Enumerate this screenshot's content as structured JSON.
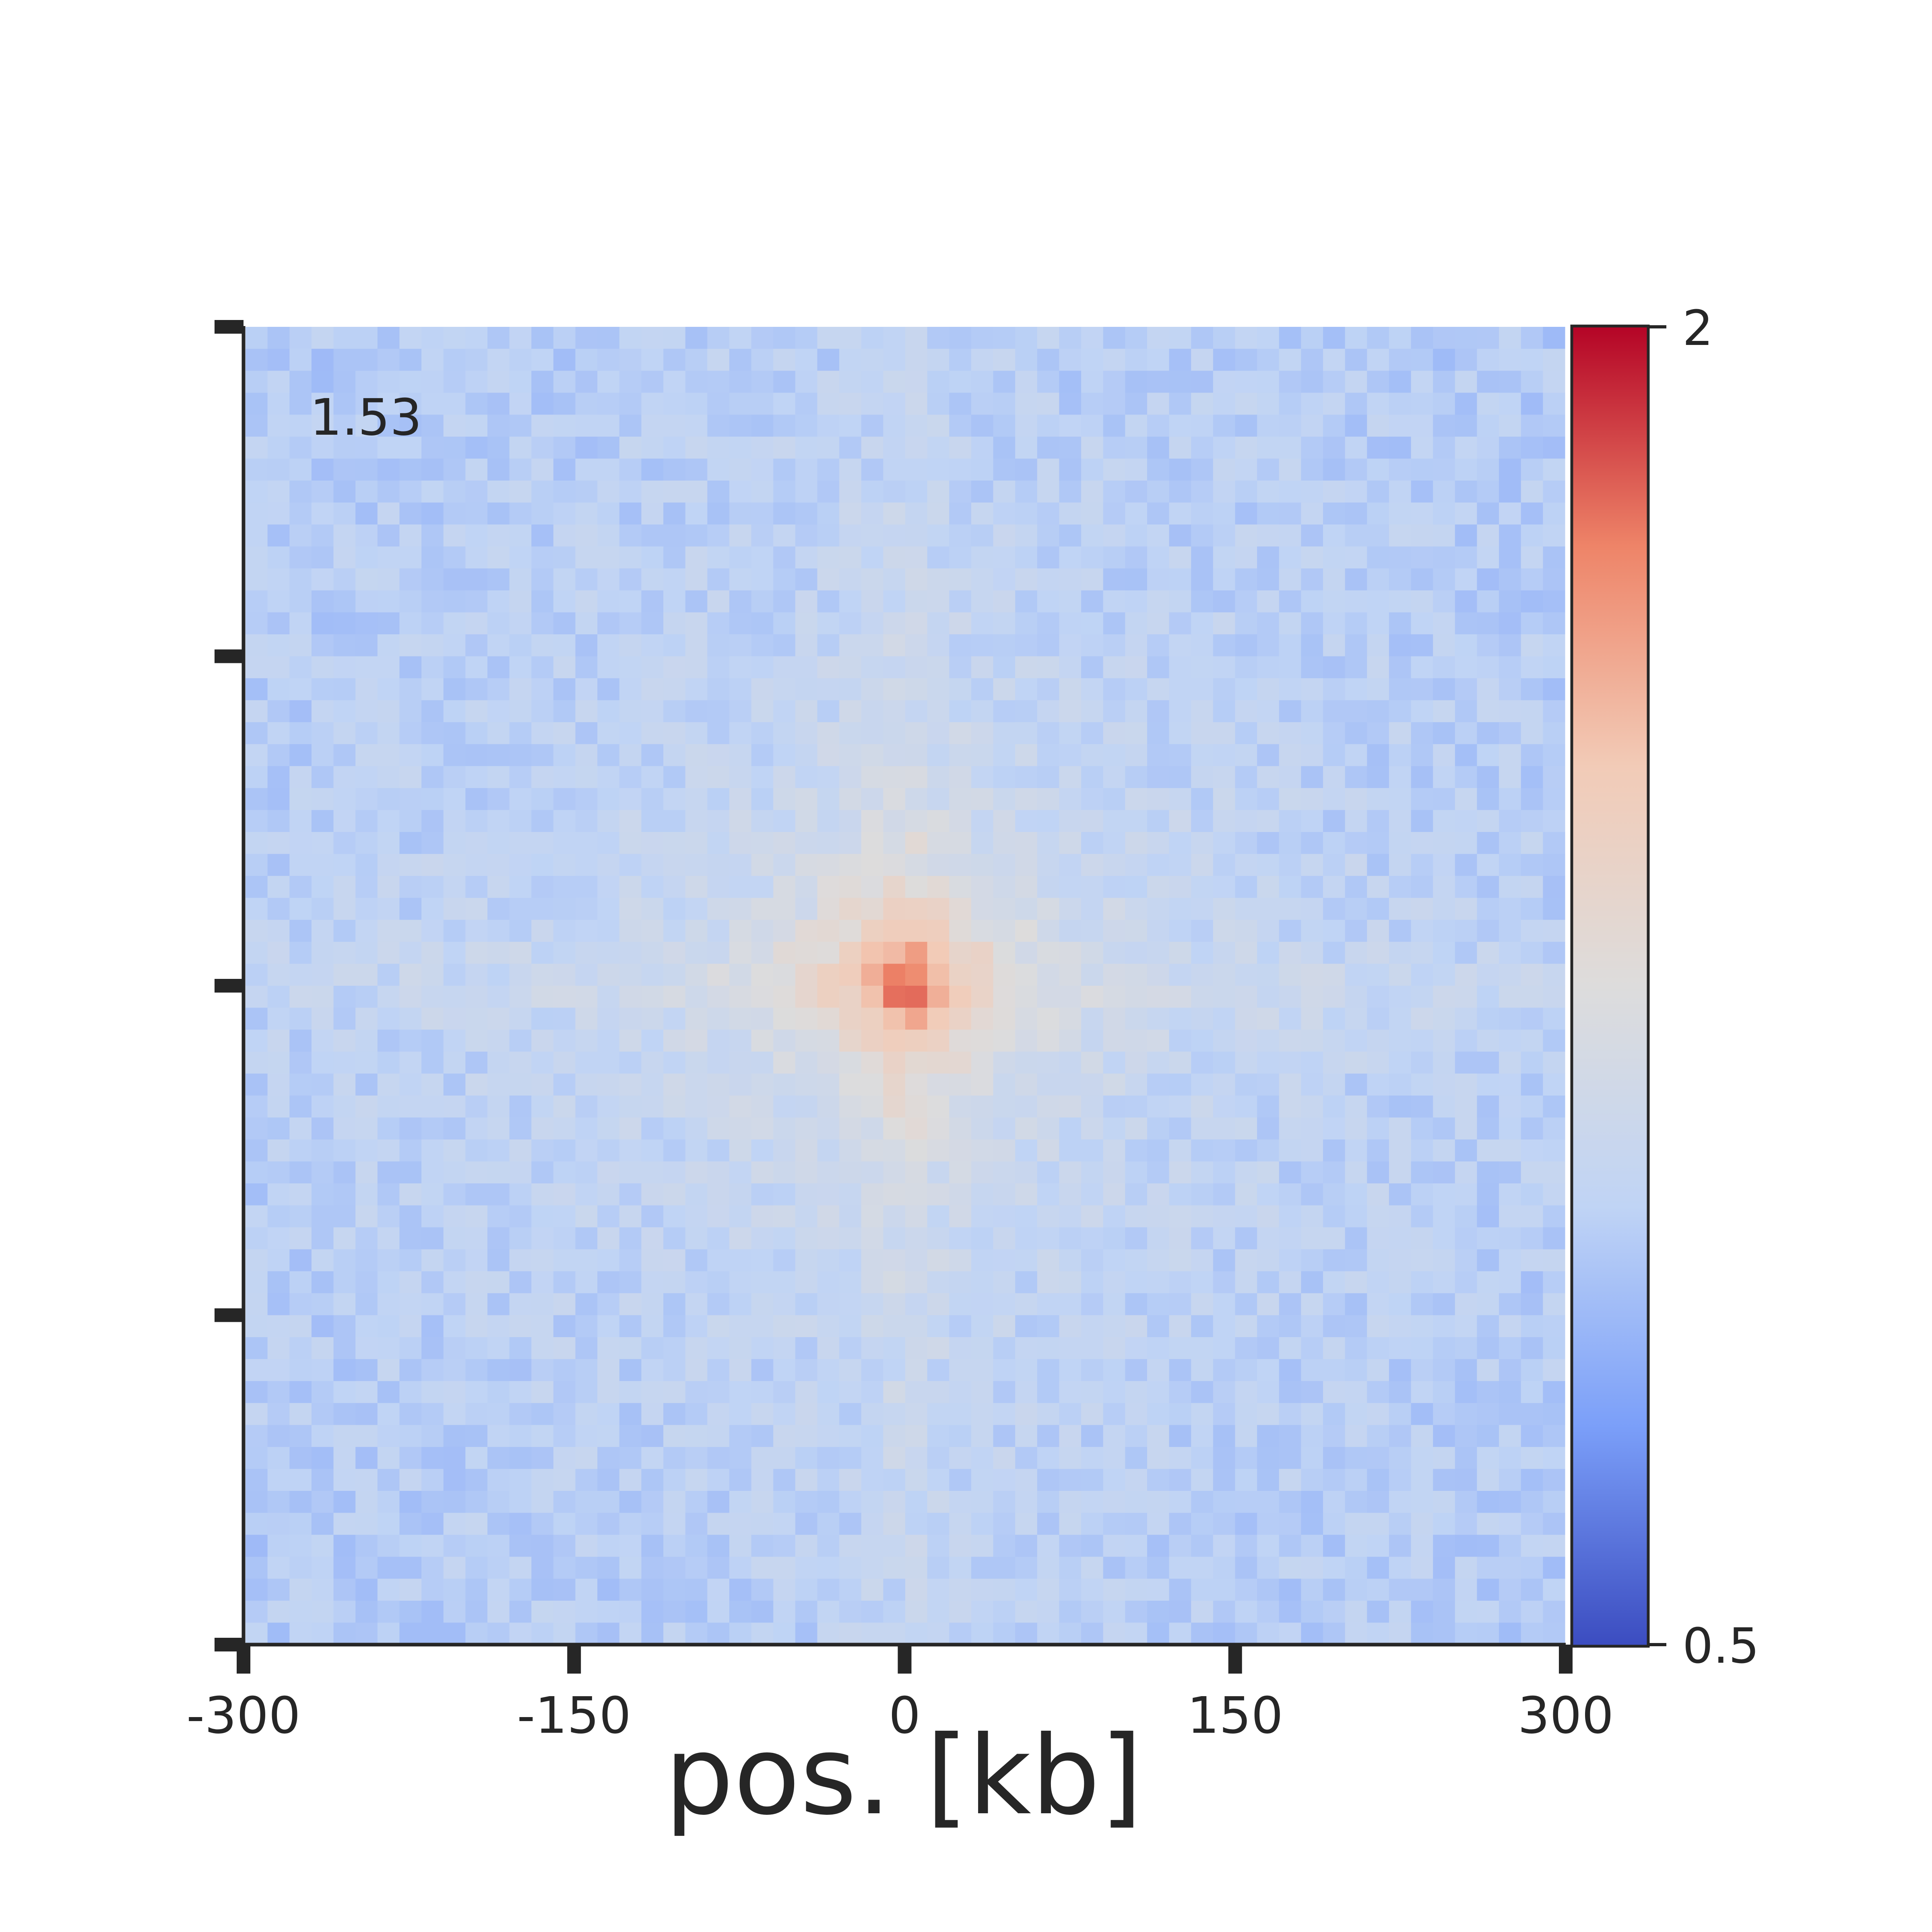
{
  "chart_data": {
    "type": "heatmap",
    "title": "",
    "annotation": "1.53",
    "xlabel": "pos. [kb]",
    "ylabel": "",
    "xlim": [
      -300,
      300
    ],
    "ylim": [
      -300,
      300
    ],
    "grid_size": 60,
    "x_ticks": [
      -300,
      -150,
      0,
      150,
      300
    ],
    "x_tick_labels": [
      "-300",
      "-150",
      "0",
      "150",
      "300"
    ],
    "y_ticks": [
      -300,
      -150,
      0,
      150,
      300
    ],
    "y_tick_labels": [
      "",
      "",
      "",
      "",
      ""
    ],
    "grid": false,
    "center_value": 1.53,
    "background_value": 1.0,
    "colorbar": {
      "min": 0.5,
      "max": 2,
      "tick_labels": [
        "2",
        "0.5"
      ],
      "colormap": "coolwarm",
      "colors": [
        "#3b4cc0",
        "#7b9ff9",
        "#c0d4f5",
        "#dddcdc",
        "#f2cbb7",
        "#ee8468",
        "#b40426"
      ]
    }
  }
}
